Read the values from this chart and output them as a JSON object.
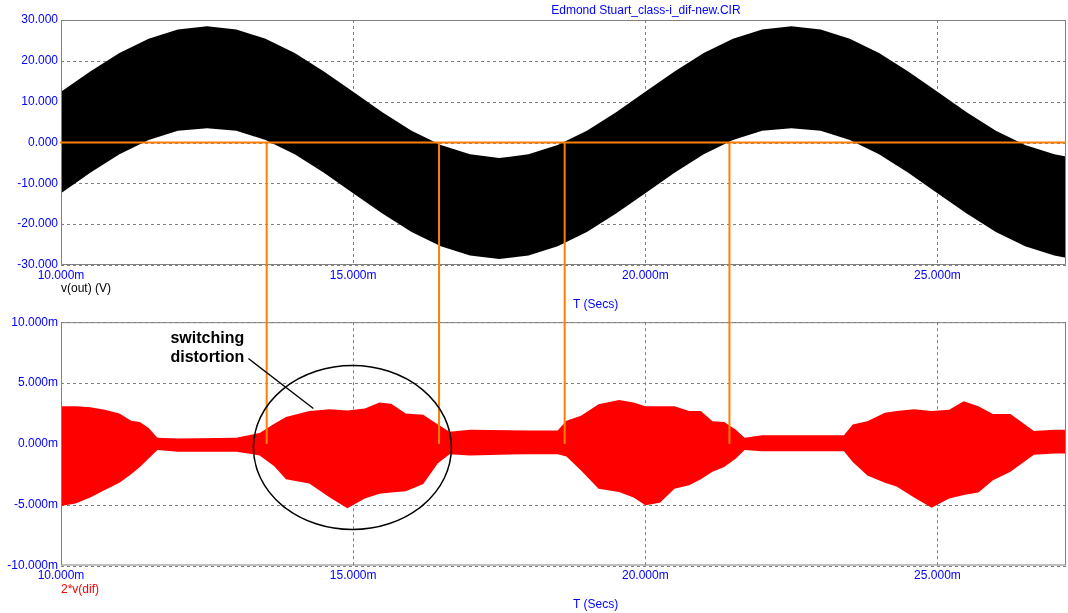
{
  "chart_data": [
    {
      "type": "line",
      "title": "Edmond Stuart_class-i_dif-new.CIR",
      "xlabel": "T (Secs)",
      "x": [
        10,
        10.5,
        11,
        11.5,
        12,
        12.5,
        13,
        13.5,
        14,
        14.5,
        15,
        15.5,
        16,
        16.5,
        17,
        17.5,
        18,
        18.5,
        19,
        19.5,
        20,
        20.5,
        21,
        21.5,
        22,
        22.5,
        23,
        23.5,
        24,
        24.5,
        25,
        25.5,
        26,
        26.5,
        27,
        27.2
      ],
      "series": [
        {
          "name": "v(out) (V)",
          "color": "#000000",
          "values": [
            null,
            null,
            null,
            null,
            null,
            null,
            null,
            null,
            null,
            null,
            null,
            null,
            null,
            null,
            null,
            null,
            null,
            null,
            null,
            null,
            null,
            null,
            null,
            null,
            null,
            null,
            null,
            null,
            null,
            null,
            null,
            null,
            null,
            null,
            null,
            null
          ],
          "upper": [
            12.4,
            17.4,
            21.9,
            25.4,
            27.7,
            28.5,
            27.7,
            25.4,
            21.9,
            17.4,
            12.4,
            7.4,
            2.9,
            -0.6,
            -2.9,
            -3.8,
            -2.9,
            -0.6,
            2.9,
            7.4,
            12.4,
            17.4,
            21.9,
            25.4,
            27.7,
            28.5,
            27.7,
            25.4,
            21.9,
            17.4,
            12.4,
            7.4,
            2.9,
            -0.6,
            -2.9,
            -3.4
          ],
          "lower": [
            -12.4,
            -7.4,
            -2.9,
            0.6,
            2.9,
            3.5,
            2.9,
            0.6,
            -2.9,
            -7.4,
            -12.4,
            -17.4,
            -21.9,
            -25.4,
            -27.7,
            -28.5,
            -27.7,
            -25.4,
            -21.9,
            -17.4,
            -12.4,
            -7.4,
            -2.9,
            0.6,
            2.9,
            3.5,
            2.9,
            0.6,
            -2.9,
            -7.4,
            -12.4,
            -17.4,
            -21.9,
            -25.4,
            -27.7,
            -28.2
          ]
        }
      ],
      "xlim": [
        10,
        27.2
      ],
      "xticks": [
        {
          "value": 10,
          "label": "10.000m"
        },
        {
          "value": 15,
          "label": "15.000m"
        },
        {
          "value": 20,
          "label": "20.000m"
        },
        {
          "value": 25,
          "label": "25.000m"
        }
      ],
      "ylim": [
        -30,
        30
      ],
      "yticks": [
        {
          "value": 30,
          "label": "30.000"
        },
        {
          "value": 20,
          "label": "20.000"
        },
        {
          "value": 10,
          "label": "10.000"
        },
        {
          "value": 0,
          "label": "0.000"
        },
        {
          "value": -10,
          "label": "-10.000"
        },
        {
          "value": -20,
          "label": "-20.000"
        },
        {
          "value": -30,
          "label": "-30.000"
        }
      ],
      "grid": true,
      "ref_lines": [
        {
          "axis": "y",
          "value": 0,
          "color": "#ff8000"
        },
        {
          "axis": "x",
          "value": 13.52,
          "color": "#ff8000"
        },
        {
          "axis": "x",
          "value": 16.47,
          "color": "#ff8000"
        },
        {
          "axis": "x",
          "value": 18.62,
          "color": "#ff8000"
        },
        {
          "axis": "x",
          "value": 21.44,
          "color": "#ff8000"
        }
      ]
    },
    {
      "type": "line",
      "xlabel": "T (Secs)",
      "x": [
        10,
        10.25,
        10.5,
        10.75,
        11,
        11.2,
        11.35,
        11.5,
        11.65,
        12,
        13,
        13.4,
        13.65,
        13.85,
        14.25,
        14.6,
        14.9,
        15.2,
        15.45,
        15.65,
        15.9,
        16.2,
        16.45,
        16.65,
        17,
        18,
        18.5,
        18.65,
        18.9,
        19.2,
        19.55,
        19.8,
        20,
        20.25,
        20.5,
        20.75,
        20.95,
        21.15,
        21.35,
        21.55,
        21.7,
        22,
        23.4,
        23.55,
        23.8,
        24.1,
        24.3,
        24.6,
        24.9,
        25.2,
        25.45,
        25.7,
        25.95,
        26.25,
        26.45,
        26.65,
        27,
        27.2
      ],
      "series": [
        {
          "name": "2*v(dif)",
          "color": "#ff0000",
          "values": [
            null,
            null,
            null,
            null,
            null,
            null,
            null,
            null,
            null,
            null,
            null,
            null,
            null,
            null,
            null,
            null,
            null,
            null,
            null,
            null,
            null,
            null,
            null,
            null,
            null,
            null,
            null,
            null,
            null,
            null,
            null,
            null,
            null,
            null,
            null,
            null,
            null,
            null,
            null,
            null,
            null,
            null,
            null,
            null,
            null,
            null,
            null,
            null,
            null,
            null,
            null,
            null,
            null,
            null,
            null,
            null,
            null,
            null
          ],
          "upper": [
            3.1,
            3.1,
            3.0,
            2.8,
            2.5,
            1.9,
            1.8,
            1.3,
            0.5,
            0.45,
            0.5,
            0.9,
            1.65,
            2.2,
            2.7,
            2.85,
            2.75,
            2.9,
            3.4,
            3.3,
            2.5,
            2.4,
            1.6,
            1.0,
            1.15,
            1.1,
            1.1,
            1.9,
            2.3,
            3.25,
            3.6,
            3.4,
            3.1,
            3.1,
            3.1,
            2.7,
            2.7,
            1.85,
            1.8,
            1.15,
            0.5,
            0.7,
            0.7,
            1.6,
            1.85,
            2.55,
            2.7,
            2.85,
            2.7,
            2.8,
            3.5,
            3.1,
            2.45,
            2.45,
            1.75,
            1.05,
            1.15,
            1.15
          ],
          "lower": [
            -5.1,
            -4.9,
            -4.4,
            -3.8,
            -3.2,
            -2.5,
            -1.9,
            -1.2,
            -0.5,
            -0.65,
            -0.65,
            -0.95,
            -1.85,
            -2.9,
            -3.25,
            -4.4,
            -5.3,
            -4.5,
            -4.1,
            -4.0,
            -3.9,
            -3.3,
            -1.6,
            -0.85,
            -0.95,
            -0.85,
            -0.85,
            -1.05,
            -2.2,
            -3.7,
            -3.95,
            -4.4,
            -5.05,
            -4.85,
            -3.7,
            -3.4,
            -2.9,
            -2.3,
            -1.9,
            -1.2,
            -0.5,
            -0.6,
            -0.6,
            -1.5,
            -2.6,
            -3.2,
            -3.5,
            -4.4,
            -5.25,
            -4.5,
            -4.2,
            -4.0,
            -3.0,
            -2.3,
            -1.6,
            -0.9,
            -0.8,
            -0.8
          ]
        }
      ],
      "xlim": [
        10,
        27.2
      ],
      "xticks": [
        {
          "value": 10,
          "label": "10.000m"
        },
        {
          "value": 15,
          "label": "15.000m"
        },
        {
          "value": 20,
          "label": "20.000m"
        },
        {
          "value": 25,
          "label": "25.000m"
        }
      ],
      "ylim": [
        -10,
        10
      ],
      "yticks": [
        {
          "value": 10,
          "label": "10.000m"
        },
        {
          "value": 5,
          "label": "5.000m"
        },
        {
          "value": 0,
          "label": "0.000m"
        },
        {
          "value": -5,
          "label": "-5.000m"
        },
        {
          "value": -10,
          "label": "-10.000m"
        }
      ],
      "grid": true,
      "ref_lines": [
        {
          "axis": "x",
          "value": 13.52,
          "color": "#ff8000"
        },
        {
          "axis": "x",
          "value": 16.47,
          "color": "#ff8000"
        },
        {
          "axis": "x",
          "value": 18.62,
          "color": "#ff8000"
        },
        {
          "axis": "x",
          "value": 21.44,
          "color": "#ff8000"
        }
      ],
      "annotations": [
        {
          "text": "switching distortion",
          "x": 14.32,
          "y": 2.9
        }
      ]
    }
  ]
}
